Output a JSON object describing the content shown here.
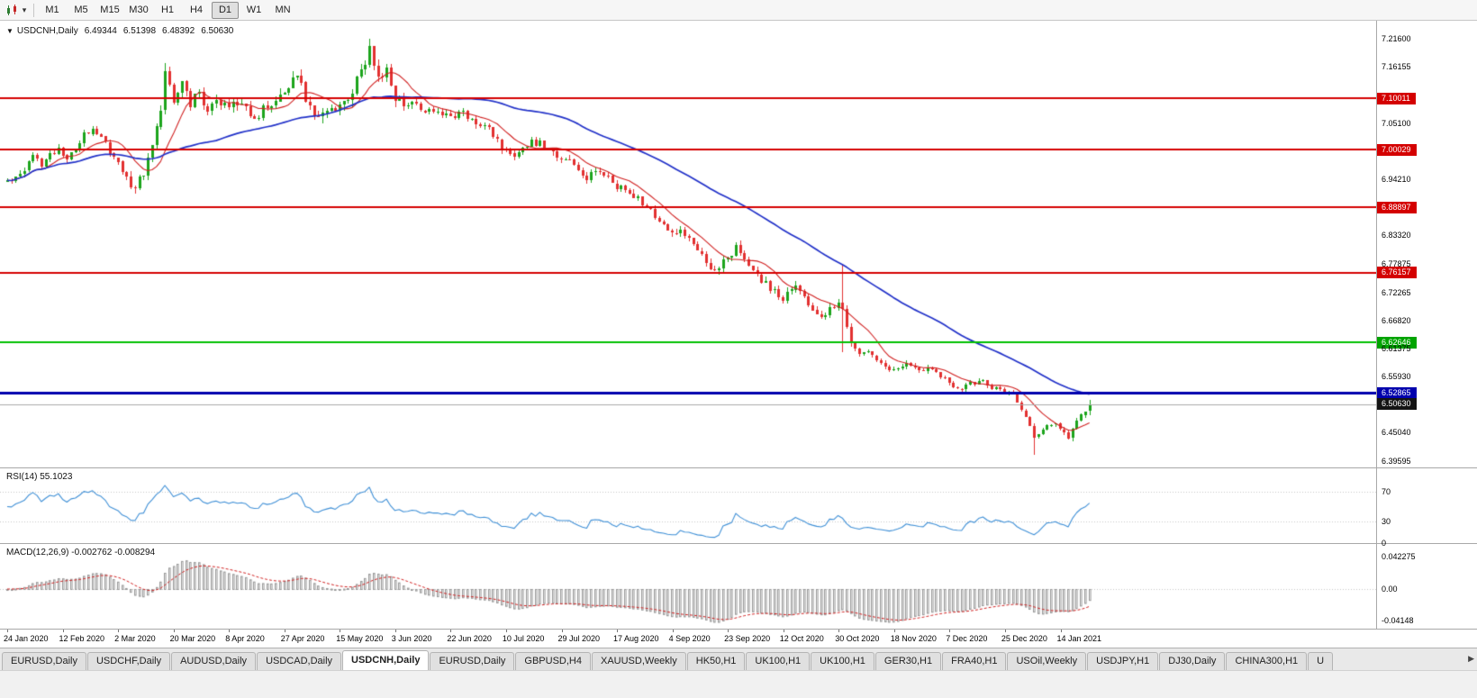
{
  "toolbar": {
    "chart_type_icon": "candlestick-chart",
    "caret_glyph": "▾",
    "timeframes": [
      "M1",
      "M5",
      "M15",
      "M30",
      "H1",
      "H4",
      "D1",
      "W1",
      "MN"
    ],
    "active_timeframe": "D1"
  },
  "chart": {
    "collapse_glyph": "▼",
    "symbol_label": "USDCNH,Daily",
    "open": "6.49344",
    "high": "6.51398",
    "low": "6.48392",
    "close": "6.50630"
  },
  "chart_data": {
    "type": "candlestick",
    "symbol": "USDCNH",
    "timeframe": "Daily",
    "last_ohlc": {
      "open": 6.49344,
      "high": 6.51398,
      "low": 6.48392,
      "close": 6.5063
    },
    "price_axis_labels": [
      {
        "text": "7.21600",
        "price": 7.216,
        "kind": "plain"
      },
      {
        "text": "7.16155",
        "price": 7.16155,
        "kind": "plain"
      },
      {
        "text": "7.10011",
        "price": 7.10011,
        "kind": "red"
      },
      {
        "text": "7.05100",
        "price": 7.051,
        "kind": "plain"
      },
      {
        "text": "7.00029",
        "price": 7.00029,
        "kind": "red"
      },
      {
        "text": "6.94210",
        "price": 6.9421,
        "kind": "plain"
      },
      {
        "text": "6.88897",
        "price": 6.88897,
        "kind": "red"
      },
      {
        "text": "6.83320",
        "price": 6.8332,
        "kind": "plain"
      },
      {
        "text": "6.77875",
        "price": 6.77875,
        "kind": "plain"
      },
      {
        "text": "6.76157",
        "price": 6.76157,
        "kind": "red"
      },
      {
        "text": "6.72265",
        "price": 6.72265,
        "kind": "plain"
      },
      {
        "text": "6.66820",
        "price": 6.6682,
        "kind": "plain"
      },
      {
        "text": "6.62646",
        "price": 6.62646,
        "kind": "green"
      },
      {
        "text": "6.61375",
        "price": 6.61375,
        "kind": "plain"
      },
      {
        "text": "6.55930",
        "price": 6.5593,
        "kind": "plain"
      },
      {
        "text": "6.52865",
        "price": 6.52865,
        "kind": "blue"
      },
      {
        "text": "6.50630",
        "price": 6.5063,
        "kind": "current"
      },
      {
        "text": "6.45040",
        "price": 6.4504,
        "kind": "plain"
      },
      {
        "text": "6.39595",
        "price": 6.39595,
        "kind": "plain"
      }
    ],
    "hlines": [
      {
        "name": "resistance-1",
        "price": 7.10011,
        "color": "#d40000",
        "width": 2
      },
      {
        "name": "resistance-2",
        "price": 7.00029,
        "color": "#d40000",
        "width": 2
      },
      {
        "name": "resistance-3",
        "price": 6.88897,
        "color": "#d40000",
        "width": 2
      },
      {
        "name": "resistance-4",
        "price": 6.76157,
        "color": "#d40000",
        "width": 2
      },
      {
        "name": "green-level",
        "price": 6.62646,
        "color": "#00c000",
        "width": 2
      },
      {
        "name": "current-price-line",
        "price": 6.5063,
        "color": "#aaaaaa",
        "width": 1
      },
      {
        "name": "blue-level",
        "price": 6.52865,
        "color": "#0000ad",
        "width": 3
      }
    ],
    "date_labels": [
      "24 Jan 2020",
      "12 Feb 2020",
      "2 Mar 2020",
      "20 Mar 2020",
      "8 Apr 2020",
      "27 Apr 2020",
      "15 May 2020",
      "3 Jun 2020",
      "22 Jun 2020",
      "10 Jul 2020",
      "29 Jul 2020",
      "17 Aug 2020",
      "4 Sep 2020",
      "23 Sep 2020",
      "12 Oct 2020",
      "30 Oct 2020",
      "18 Nov 2020",
      "7 Dec 2020",
      "25 Dec 2020",
      "14 Jan 2021"
    ],
    "candles": {
      "count": 255,
      "keypoints": [
        [
          0,
          6.935
        ],
        [
          2,
          6.955
        ],
        [
          4,
          6.962
        ],
        [
          6,
          6.985
        ],
        [
          8,
          6.972
        ],
        [
          10,
          6.993
        ],
        [
          12,
          7.003
        ],
        [
          14,
          6.986
        ],
        [
          16,
          7.0
        ],
        [
          18,
          7.028
        ],
        [
          20,
          7.046
        ],
        [
          22,
          7.024
        ],
        [
          24,
          6.995
        ],
        [
          26,
          6.976
        ],
        [
          28,
          6.946
        ],
        [
          30,
          6.924
        ],
        [
          32,
          6.952
        ],
        [
          34,
          7.005
        ],
        [
          36,
          7.088
        ],
        [
          37,
          7.155
        ],
        [
          39,
          7.098
        ],
        [
          41,
          7.128
        ],
        [
          43,
          7.088
        ],
        [
          45,
          7.112
        ],
        [
          47,
          7.078
        ],
        [
          49,
          7.094
        ],
        [
          52,
          7.079
        ],
        [
          55,
          7.094
        ],
        [
          58,
          7.068
        ],
        [
          61,
          7.084
        ],
        [
          64,
          7.099
        ],
        [
          66,
          7.128
        ],
        [
          68,
          7.152
        ],
        [
          70,
          7.098
        ],
        [
          72,
          7.068
        ],
        [
          75,
          7.074
        ],
        [
          78,
          7.088
        ],
        [
          81,
          7.118
        ],
        [
          83,
          7.146
        ],
        [
          85,
          7.192
        ],
        [
          87,
          7.143
        ],
        [
          89,
          7.158
        ],
        [
          91,
          7.1
        ],
        [
          93,
          7.08
        ],
        [
          95,
          7.093
        ],
        [
          98,
          7.068
        ],
        [
          101,
          7.079
        ],
        [
          104,
          7.064
        ],
        [
          107,
          7.073
        ],
        [
          110,
          7.058
        ],
        [
          113,
          7.038
        ],
        [
          116,
          7.004
        ],
        [
          119,
          6.994
        ],
        [
          122,
          7.009
        ],
        [
          125,
          7.018
        ],
        [
          128,
          6.994
        ],
        [
          130,
          6.985
        ],
        [
          133,
          6.974
        ],
        [
          136,
          6.949
        ],
        [
          139,
          6.959
        ],
        [
          142,
          6.934
        ],
        [
          145,
          6.919
        ],
        [
          148,
          6.909
        ],
        [
          151,
          6.879
        ],
        [
          154,
          6.859
        ],
        [
          156,
          6.841
        ],
        [
          158,
          6.846
        ],
        [
          160,
          6.829
        ],
        [
          163,
          6.799
        ],
        [
          166,
          6.764
        ],
        [
          169,
          6.789
        ],
        [
          171,
          6.814
        ],
        [
          173,
          6.789
        ],
        [
          176,
          6.759
        ],
        [
          179,
          6.729
        ],
        [
          182,
          6.714
        ],
        [
          185,
          6.734
        ],
        [
          188,
          6.699
        ],
        [
          191,
          6.679
        ],
        [
          194,
          6.694
        ],
        [
          196,
          6.699
        ],
        [
          198,
          6.619
        ],
        [
          200,
          6.599
        ],
        [
          202,
          6.614
        ],
        [
          205,
          6.584
        ],
        [
          208,
          6.574
        ],
        [
          211,
          6.589
        ],
        [
          214,
          6.569
        ],
        [
          217,
          6.579
        ],
        [
          220,
          6.554
        ],
        [
          222,
          6.534
        ],
        [
          225,
          6.539
        ],
        [
          228,
          6.554
        ],
        [
          231,
          6.539
        ],
        [
          234,
          6.534
        ],
        [
          236,
          6.524
        ],
        [
          238,
          6.499
        ],
        [
          240,
          6.459
        ],
        [
          241,
          6.439
        ],
        [
          243,
          6.454
        ],
        [
          245,
          6.469
        ],
        [
          247,
          6.459
        ],
        [
          249,
          6.444
        ],
        [
          251,
          6.474
        ],
        [
          253,
          6.489
        ],
        [
          254,
          6.5063
        ]
      ],
      "specials": [
        {
          "i": 37,
          "high": 7.168
        },
        {
          "i": 85,
          "high": 7.216
        },
        {
          "i": 196,
          "high": 6.777,
          "low": 6.607
        },
        {
          "i": 241,
          "low": 6.408
        },
        {
          "i": 254,
          "open": 6.49344,
          "high": 6.51398,
          "low": 6.48392,
          "close": 6.5063
        }
      ]
    },
    "moving_averages": [
      {
        "period": 10,
        "color": "#d02020"
      },
      {
        "period": 50,
        "color": "#2030c8"
      }
    ],
    "rsi": {
      "label": "RSI(14) 55.1023",
      "period": 14,
      "last_value": 55.1023,
      "levels": [
        70,
        30
      ],
      "axis_labels": [
        {
          "text": "70",
          "value": 70
        },
        {
          "text": "30",
          "value": 30
        },
        {
          "text": "0",
          "value": 0
        }
      ]
    },
    "macd": {
      "label": "MACD(12,26,9) -0.002762 -0.008294",
      "fast": 12,
      "slow": 26,
      "signal": 9,
      "last_main": -0.002762,
      "last_signal": -0.008294,
      "axis_labels": [
        {
          "text": "0.042275",
          "value": 0.042275
        },
        {
          "text": "0.00",
          "value": 0
        },
        {
          "text": "-0.04148",
          "value": -0.04148
        }
      ]
    },
    "colors": {
      "up": "#1ca41c",
      "down": "#e23030",
      "rsi_line": "#3e8fd6",
      "macd_hist": "#999999",
      "macd_signal": "#d02020"
    }
  },
  "tabs": {
    "items": [
      "EURUSD,Daily",
      "USDCHF,Daily",
      "AUDUSD,Daily",
      "USDCAD,Daily",
      "USDCNH,Daily",
      "EURUSD,Daily",
      "GBPUSD,H4",
      "XAUUSD,Weekly",
      "HK50,H1",
      "UK100,H1",
      "UK100,H1",
      "GER30,H1",
      "FRA40,H1",
      "USOil,Weekly",
      "USDJPY,H1",
      "DJ30,Daily",
      "CHINA300,H1",
      "U"
    ],
    "active_index": 4,
    "scroll_right_glyph": "▶"
  }
}
